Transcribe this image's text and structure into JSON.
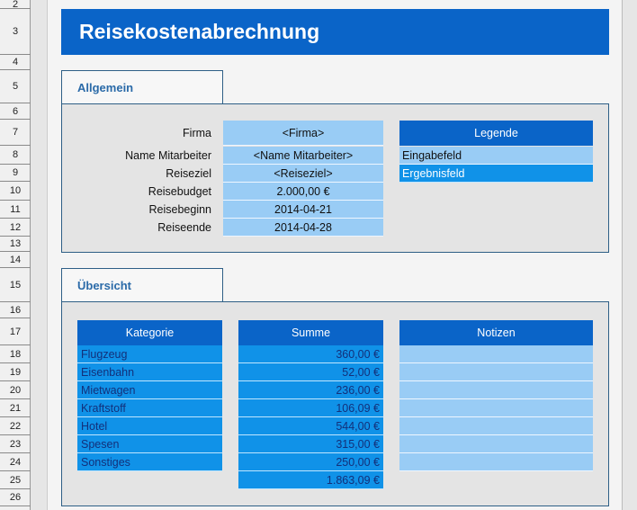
{
  "row_headers": [
    "2",
    "3",
    "4",
    "5",
    "6",
    "7",
    "8",
    "9",
    "10",
    "11",
    "12",
    "13",
    "14",
    "15",
    "16",
    "17",
    "18",
    "19",
    "20",
    "21",
    "22",
    "23",
    "24",
    "25",
    "26"
  ],
  "title": "Reisekostenabrechnung",
  "allgemein": {
    "tab": "Allgemein",
    "fields": [
      {
        "label": "Firma",
        "value": "<Firma>"
      },
      {
        "label": "Name Mitarbeiter",
        "value": "<Name Mitarbeiter>"
      },
      {
        "label": "Reiseziel",
        "value": "<Reiseziel>"
      },
      {
        "label": "Reisebudget",
        "value": "2.000,00 €"
      },
      {
        "label": "Reisebeginn",
        "value": "2014-04-21"
      },
      {
        "label": "Reiseende",
        "value": "2014-04-28"
      }
    ]
  },
  "legende": {
    "header": "Legende",
    "input": "Eingabefeld",
    "result": "Ergebnisfeld"
  },
  "uebersicht": {
    "tab": "Übersicht",
    "headers": {
      "kategorie": "Kategorie",
      "summe": "Summe",
      "notizen": "Notizen"
    },
    "rows": [
      {
        "kategorie": "Flugzeug",
        "summe": "360,00 €"
      },
      {
        "kategorie": "Eisenbahn",
        "summe": "52,00 €"
      },
      {
        "kategorie": "Mietwagen",
        "summe": "236,00 €"
      },
      {
        "kategorie": "Kraftstoff",
        "summe": "106,09 €"
      },
      {
        "kategorie": "Hotel",
        "summe": "544,00 €"
      },
      {
        "kategorie": "Spesen",
        "summe": "315,00 €"
      },
      {
        "kategorie": "Sonstiges",
        "summe": "250,00 €"
      }
    ],
    "total": "1.863,09 €"
  },
  "colors": {
    "header_blue": "#0a64c8",
    "input_blue": "#99ccf5",
    "result_blue": "#1092e8"
  }
}
